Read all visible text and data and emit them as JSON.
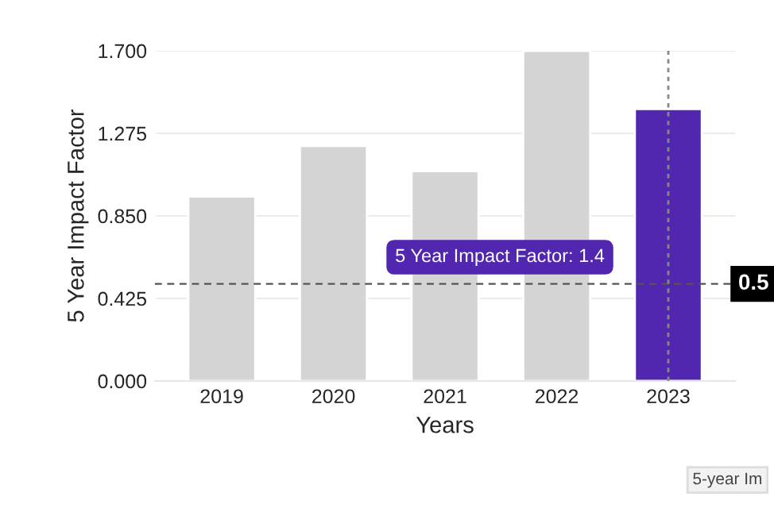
{
  "chart_data": {
    "type": "bar",
    "xlabel": "Years",
    "ylabel": "5 Year Impact Factor",
    "categories": [
      "2019",
      "2020",
      "2021",
      "2022",
      "2023"
    ],
    "values": [
      0.95,
      1.21,
      1.08,
      1.7,
      1.4
    ],
    "colors": [
      "#d3d4d3",
      "#d3d4d3",
      "#d3d4d3",
      "#d3d4d3",
      "#5127b0"
    ],
    "ylim": [
      0,
      1.7
    ],
    "yticks": [
      {
        "value": 0,
        "label": "0.000"
      },
      {
        "value": 0.425,
        "label": "0.425"
      },
      {
        "value": 0.85,
        "label": "0.850"
      },
      {
        "value": 1.275,
        "label": "1.275"
      },
      {
        "value": 1.7,
        "label": "1.700"
      }
    ],
    "grid": "y",
    "ref_lines": [
      {
        "axis": "y",
        "value": 0.5,
        "label": "0.5",
        "line_style": "dashed",
        "color": "#555555"
      },
      {
        "axis": "x",
        "value": "2023",
        "line_style": "dotted",
        "color": "#888888"
      }
    ],
    "annotations": [
      "5 Year Impact Factor: 1.4",
      "5-year Im"
    ]
  }
}
